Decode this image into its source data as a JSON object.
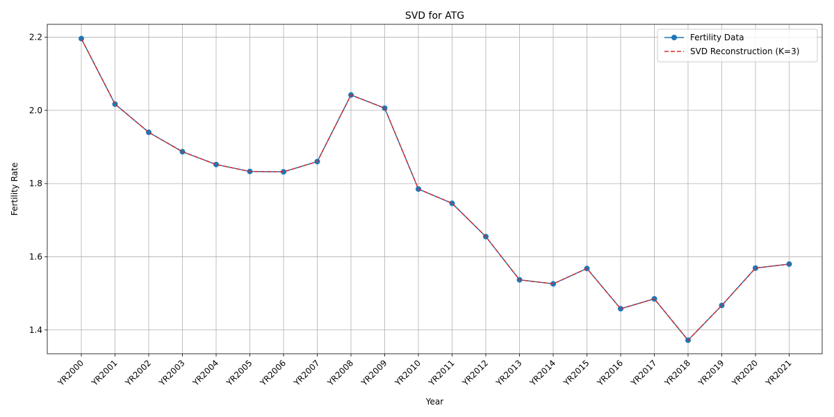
{
  "chart_data": {
    "type": "line",
    "title": "SVD for ATG",
    "xlabel": "Year",
    "ylabel": "Fertility Rate",
    "categories": [
      "YR2000",
      "YR2001",
      "YR2002",
      "YR2003",
      "YR2004",
      "YR2005",
      "YR2006",
      "YR2007",
      "YR2008",
      "YR2009",
      "YR2010",
      "YR2011",
      "YR2012",
      "YR2013",
      "YR2014",
      "YR2015",
      "YR2016",
      "YR2017",
      "YR2018",
      "YR2019",
      "YR2020",
      "YR2021"
    ],
    "ylim": [
      1.335,
      2.235
    ],
    "yticks": [
      1.4,
      1.6,
      1.8,
      2.0,
      2.2
    ],
    "ytick_labels": [
      "1.4",
      "1.6",
      "1.8",
      "2.0",
      "2.2"
    ],
    "grid": true,
    "legend_position": "top-right",
    "series": [
      {
        "name": "Fertility Data",
        "color": "#1f77b4",
        "style": "solid-with-markers",
        "values": [
          2.196,
          2.017,
          1.94,
          1.887,
          1.852,
          1.833,
          1.832,
          1.86,
          2.042,
          2.006,
          1.785,
          1.746,
          1.655,
          1.537,
          1.526,
          1.568,
          1.458,
          1.485,
          1.372,
          1.467,
          1.569,
          1.58
        ]
      },
      {
        "name": "SVD Reconstruction (K=3)",
        "color": "#d62728",
        "style": "dashed",
        "values": [
          2.196,
          2.017,
          1.94,
          1.887,
          1.852,
          1.833,
          1.832,
          1.86,
          2.042,
          2.006,
          1.785,
          1.746,
          1.655,
          1.537,
          1.526,
          1.568,
          1.458,
          1.485,
          1.372,
          1.467,
          1.569,
          1.58
        ]
      }
    ]
  }
}
